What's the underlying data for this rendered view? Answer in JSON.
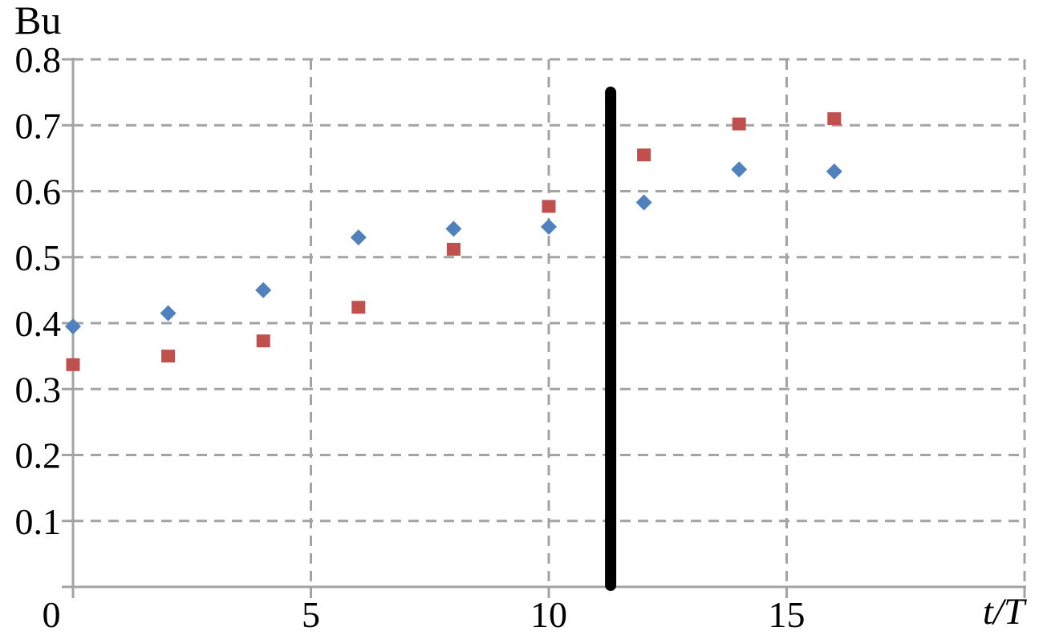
{
  "page": {
    "background": "#ffffff"
  },
  "chart_data": {
    "type": "scatter",
    "title": "",
    "ylabel": "Bu",
    "xlabel": "t/T",
    "xlim": [
      0,
      20
    ],
    "ylim": [
      0,
      0.8
    ],
    "xticks": [
      5,
      10,
      15
    ],
    "xtick_labels": [
      "5",
      "10",
      "15"
    ],
    "xgrid_positions": [
      5,
      10,
      15,
      20
    ],
    "yticks": [
      0.1,
      0.2,
      0.3,
      0.4,
      0.5,
      0.6,
      0.7,
      0.8
    ],
    "ytick_labels": [
      "0.1",
      "0.2",
      "0.3",
      "0.4",
      "0.5",
      "0.6",
      "0.7",
      "0.8"
    ],
    "origin_label": "0",
    "grid": {
      "style": "dashed",
      "color": "#a3a3a3"
    },
    "axis_color": "#a3a3a3",
    "legend": "none",
    "x": [
      0,
      2,
      4,
      6,
      8,
      10,
      12,
      14,
      16
    ],
    "series": [
      {
        "name": "blue-diamond-series",
        "marker": "diamond",
        "color": "#4f81bd",
        "values": [
          0.395,
          0.415,
          0.45,
          0.53,
          0.543,
          0.546,
          0.583,
          0.633,
          0.63
        ]
      },
      {
        "name": "red-square-series",
        "marker": "square",
        "color": "#c0504d",
        "values": [
          0.337,
          0.35,
          0.373,
          0.424,
          0.512,
          0.577,
          0.655,
          0.702,
          0.71
        ]
      }
    ],
    "annotation": {
      "type": "vertical-bar",
      "x": 11.3,
      "y_from": 0,
      "y_to": 0.755,
      "color": "#000000"
    }
  }
}
